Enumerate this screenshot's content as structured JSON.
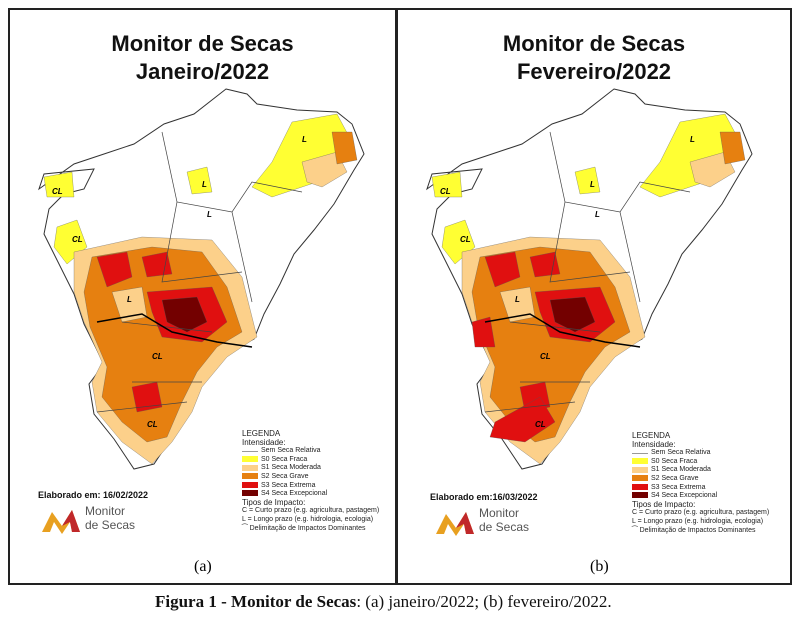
{
  "panels": [
    {
      "title_line1": "Monitor de Secas",
      "title_line2": "Janeiro/2022",
      "elaborado": "Elaborado em: 16/02/2022",
      "sublabel": "(a)"
    },
    {
      "title_line1": "Monitor de Secas",
      "title_line2": "Fevereiro/2022",
      "elaborado": "Elaborado em:16/03/2022",
      "sublabel": "(b)"
    }
  ],
  "logo": {
    "line1": "Monitor",
    "line2": "de Secas"
  },
  "map_labels": {
    "C": "C",
    "L": "L",
    "CL": "CL"
  },
  "legend": {
    "title": "LEGENDA",
    "intensity": "Intensidade:",
    "items": [
      {
        "label": "Sem Seca Relativa",
        "color": "#ffffff"
      },
      {
        "label": "S0 Seca Fraca",
        "color": "#ffff33"
      },
      {
        "label": "S1 Seca Moderada",
        "color": "#fcd08a"
      },
      {
        "label": "S2 Seca Grave",
        "color": "#e68010"
      },
      {
        "label": "S3 Seca Extrema",
        "color": "#e01010"
      },
      {
        "label": "S4 Seca Excepcional",
        "color": "#730000"
      }
    ],
    "impact_title": "Tipos de Impacto:",
    "impact_c": "C = Curto prazo (e.g. agricultura, pastagem)",
    "impact_l": "L = Longo prazo (e.g. hidrologia, ecologia)",
    "impact_line": "Delimitação de Impactos Dominantes"
  },
  "caption": {
    "bold": "Figura 1 - Monitor de Secas",
    "rest": ": (a) janeiro/2022; (b) fevereiro/2022."
  }
}
